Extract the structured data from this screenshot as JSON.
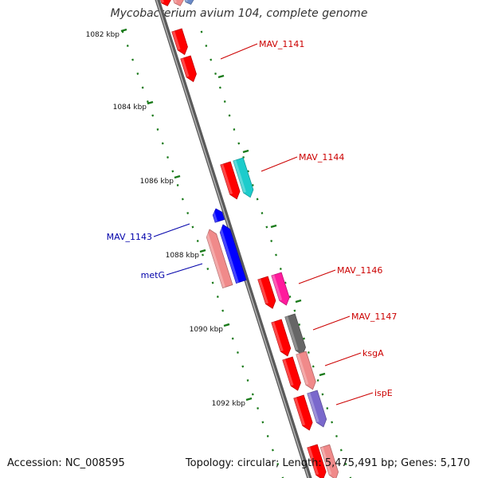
{
  "map_title": "Mycobacterium avium 104, complete genome",
  "footer": {
    "accession": "Accession: NC_008595",
    "summary": "Topology: circular; Length: 5,475,491 bp; Genes: 5,170"
  },
  "colors": {
    "backbone": "#7f7f7f",
    "tick": "#1a7a1a",
    "label_forward": "#cc0000",
    "label_reverse": "#0000aa",
    "cds_red": "#ff0000",
    "cds_cyan": "#1ccccc",
    "cds_magenta": "#ff1a9c",
    "cds_gray": "#666666",
    "cds_pink": "#f08a8a",
    "cds_purple": "#7a68cc",
    "cds_blue": "#0000ff"
  },
  "kbp_labels": [
    "1082 kbp",
    "1084 kbp",
    "1086 kbp",
    "1088 kbp",
    "1090 kbp",
    "1092 kbp"
  ],
  "gene_labels": [
    {
      "id": "MAV_1141",
      "text": "MAV_1141",
      "strand": "forward"
    },
    {
      "id": "MAV_1144",
      "text": "MAV_1144",
      "strand": "forward"
    },
    {
      "id": "MAV_1143",
      "text": "MAV_1143",
      "strand": "reverse"
    },
    {
      "id": "metG",
      "text": "metG",
      "strand": "reverse"
    },
    {
      "id": "MAV_1146",
      "text": "MAV_1146",
      "strand": "forward"
    },
    {
      "id": "MAV_1147",
      "text": "MAV_1147",
      "strand": "forward"
    },
    {
      "id": "ksgA",
      "text": "ksgA",
      "strand": "forward"
    },
    {
      "id": "ispE",
      "text": "ispE",
      "strand": "forward"
    }
  ]
}
